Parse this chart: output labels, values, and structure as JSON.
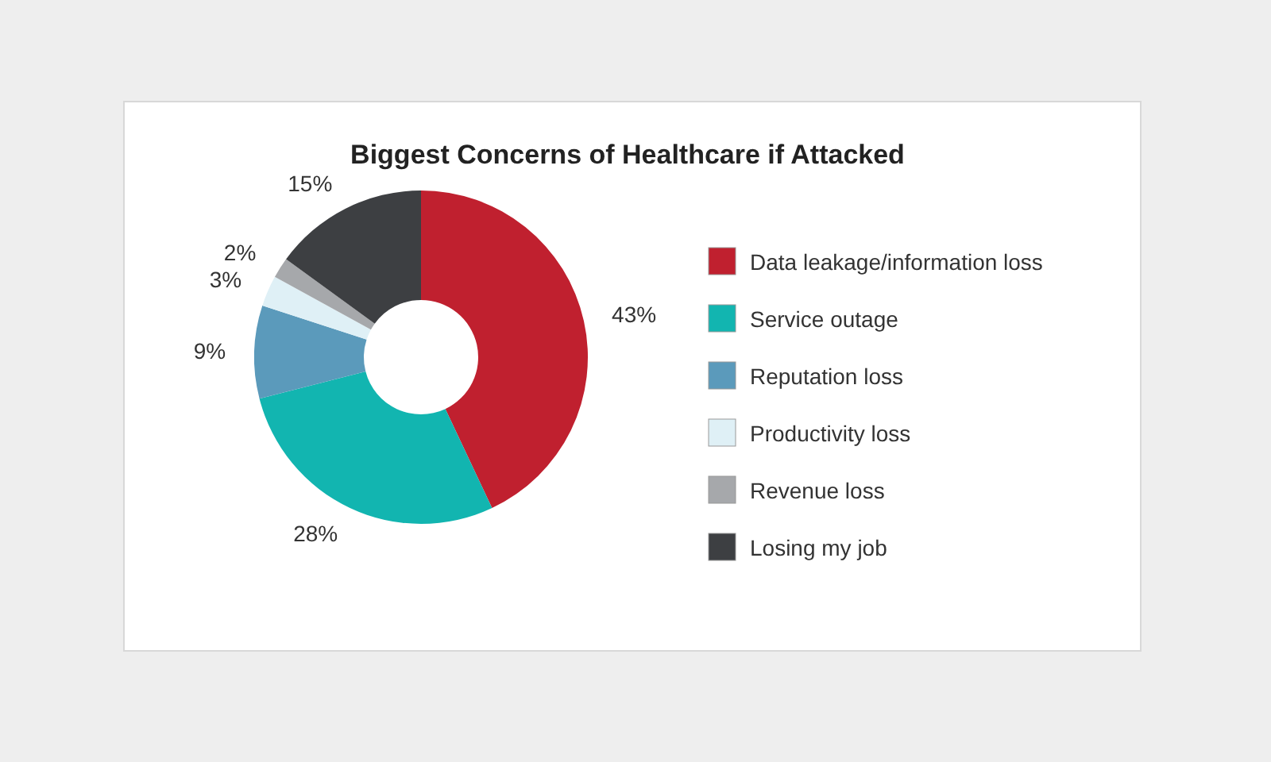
{
  "chart_data": {
    "type": "donut",
    "title": "Biggest Concerns of Healthcare if Attacked",
    "categories": [
      "Data leakage/information loss",
      "Service outage",
      "Reputation loss",
      "Productivity loss",
      "Revenue loss",
      "Losing my job"
    ],
    "values": [
      43,
      28,
      9,
      3,
      2,
      15
    ],
    "colors": [
      "#c0202f",
      "#12b5b0",
      "#5b9abb",
      "#dff0f6",
      "#a6a8ab",
      "#3d3f42"
    ],
    "value_labels": [
      "43%",
      "28%",
      "9%",
      "3%",
      "2%",
      "15%"
    ],
    "legend": "right"
  }
}
